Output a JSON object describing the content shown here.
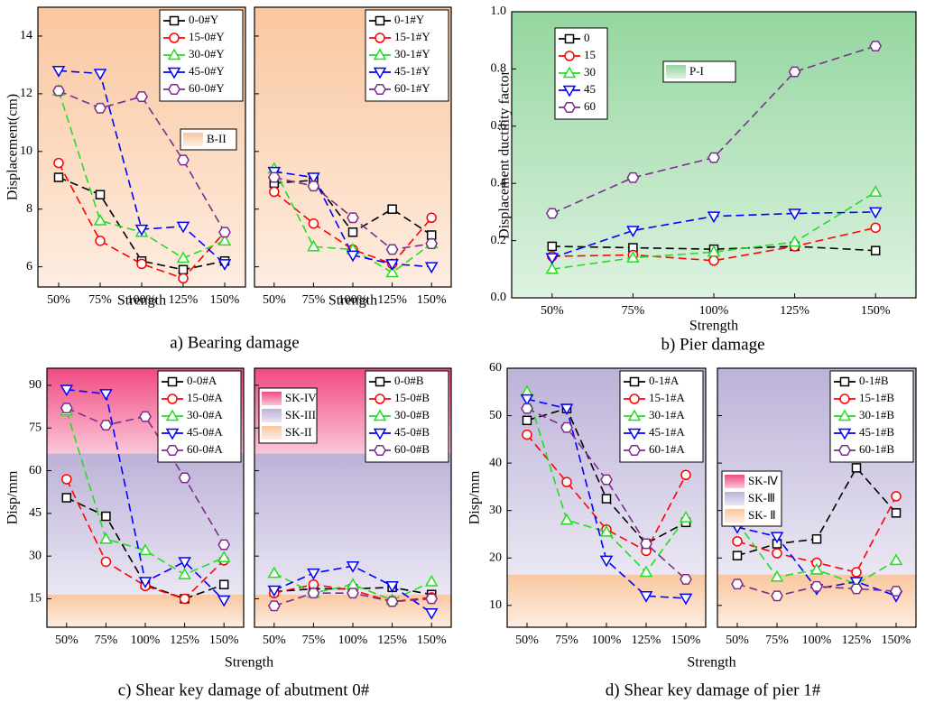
{
  "chart_data": [
    {
      "type": "line",
      "caption": "a) Bearing damage",
      "ylabel": "Displacement(cm)",
      "legend": "upper right",
      "categories": [
        "50%",
        "75%",
        "100%",
        "125%",
        "150%"
      ],
      "ylim": [
        5.3,
        15
      ],
      "yticks": [
        6,
        8,
        10,
        12,
        14
      ],
      "bands": [
        {
          "label": "B-II",
          "range": [
            5.3,
            15
          ],
          "color": "#f9c49a"
        }
      ],
      "panels": [
        {
          "xlabel": "Strength",
          "series": [
            {
              "name": "0-0#Y",
              "color": "#000000",
              "marker": "square",
              "values": [
                9.1,
                8.5,
                6.2,
                5.9,
                6.2
              ]
            },
            {
              "name": "15-0#Y",
              "color": "#ff0000",
              "marker": "circle",
              "values": [
                9.6,
                6.9,
                6.1,
                5.6,
                7.2
              ]
            },
            {
              "name": "30-0#Y",
              "color": "#22dd22",
              "marker": "triangle-up",
              "values": [
                12.1,
                7.6,
                7.2,
                6.3,
                6.9
              ]
            },
            {
              "name": "45-0#Y",
              "color": "#0000ff",
              "marker": "triangle-down",
              "values": [
                12.8,
                12.7,
                7.3,
                7.4,
                6.1
              ]
            },
            {
              "name": "60-0#Y",
              "color": "#7b2d8b",
              "marker": "hexagon",
              "values": [
                12.1,
                11.5,
                11.9,
                9.7,
                7.2
              ]
            }
          ]
        },
        {
          "xlabel": "Strength",
          "series": [
            {
              "name": "0-1#Y",
              "color": "#000000",
              "marker": "square",
              "values": [
                8.9,
                9.0,
                7.2,
                8.0,
                7.1
              ]
            },
            {
              "name": "15-1#Y",
              "color": "#ff0000",
              "marker": "circle",
              "values": [
                8.6,
                7.5,
                6.6,
                6.1,
                7.7
              ]
            },
            {
              "name": "30-1#Y",
              "color": "#22dd22",
              "marker": "triangle-up",
              "values": [
                9.4,
                6.7,
                6.6,
                5.8,
                6.8
              ]
            },
            {
              "name": "45-1#Y",
              "color": "#0000ff",
              "marker": "triangle-down",
              "values": [
                9.3,
                9.1,
                6.4,
                6.1,
                6.0
              ]
            },
            {
              "name": "60-1#Y",
              "color": "#7b2d8b",
              "marker": "hexagon",
              "values": [
                9.1,
                8.8,
                7.7,
                6.6,
                6.8
              ]
            }
          ]
        }
      ]
    },
    {
      "type": "line",
      "caption": "b) Pier damage",
      "ylabel": "Displacement ductility factor",
      "xlabel": "Strength",
      "legend": "upper left",
      "categories": [
        "50%",
        "75%",
        "100%",
        "125%",
        "150%"
      ],
      "ylim": [
        0,
        1
      ],
      "yticks": [
        {
          "value": 0,
          "label": "0.0"
        },
        0.2,
        0.4,
        0.6,
        0.8,
        {
          "value": 1,
          "label": "1.0"
        }
      ],
      "bands": [
        {
          "label": "P-I",
          "range": [
            0,
            1
          ],
          "color": "#8fd49a"
        }
      ],
      "panels": [
        {
          "series": [
            {
              "name": "0",
              "color": "#000000",
              "marker": "square",
              "values": [
                0.18,
                0.175,
                0.17,
                0.18,
                0.165
              ]
            },
            {
              "name": "15",
              "color": "#ff0000",
              "marker": "circle",
              "values": [
                0.145,
                0.15,
                0.13,
                0.18,
                0.245
              ]
            },
            {
              "name": "30",
              "color": "#22dd22",
              "marker": "triangle-up",
              "values": [
                0.1,
                0.14,
                0.16,
                0.195,
                0.37
              ]
            },
            {
              "name": "45",
              "color": "#0000ff",
              "marker": "triangle-down",
              "values": [
                0.14,
                0.235,
                0.285,
                0.295,
                0.3
              ]
            },
            {
              "name": "60",
              "color": "#7b2d8b",
              "marker": "hexagon",
              "values": [
                0.295,
                0.42,
                0.49,
                0.79,
                0.88
              ]
            }
          ]
        }
      ]
    },
    {
      "type": "line",
      "caption": "c) Shear key damage of abutment 0#",
      "ylabel": "Disp/mm",
      "xlabel": "Strength",
      "legend": "upper right",
      "categories": [
        "50%",
        "75%",
        "100%",
        "125%",
        "150%"
      ],
      "ylim": [
        5,
        96
      ],
      "yticks": [
        15,
        30,
        45,
        60,
        75,
        90
      ],
      "bands": [
        {
          "label": "SK-IV",
          "range": [
            66,
            96
          ],
          "color": "#f0407a"
        },
        {
          "label": "SK-III",
          "range": [
            16.5,
            66
          ],
          "color": "#b9aed6"
        },
        {
          "label": "SK-II",
          "range": [
            5,
            16.5
          ],
          "color": "#f9c49a"
        }
      ],
      "panels": [
        {
          "series": [
            {
              "name": "0-0#A",
              "color": "#000000",
              "marker": "square",
              "values": [
                50.5,
                44,
                20,
                15,
                20
              ]
            },
            {
              "name": "15-0#A",
              "color": "#ff0000",
              "marker": "circle",
              "values": [
                57,
                28,
                19.5,
                15,
                28.5
              ]
            },
            {
              "name": "30-0#A",
              "color": "#22dd22",
              "marker": "triangle-up",
              "values": [
                81,
                36,
                32,
                23.5,
                29.5
              ]
            },
            {
              "name": "45-0#A",
              "color": "#0000ff",
              "marker": "triangle-down",
              "values": [
                88.5,
                87,
                21,
                28,
                14.5
              ]
            },
            {
              "name": "60-0#A",
              "color": "#7b2d8b",
              "marker": "hexagon",
              "values": [
                82,
                76,
                79,
                57.5,
                34
              ]
            }
          ]
        },
        {
          "series": [
            {
              "name": "0-0#B",
              "color": "#000000",
              "marker": "square",
              "values": [
                17.5,
                18.5,
                18.5,
                19,
                16.5
              ]
            },
            {
              "name": "15-0#B",
              "color": "#ff0000",
              "marker": "circle",
              "values": [
                17,
                20,
                18,
                14,
                15.5
              ]
            },
            {
              "name": "30-0#B",
              "color": "#22dd22",
              "marker": "triangle-up",
              "values": [
                24,
                17,
                20,
                14.5,
                21
              ]
            },
            {
              "name": "45-0#B",
              "color": "#0000ff",
              "marker": "triangle-down",
              "values": [
                18,
                24,
                26.5,
                19.5,
                10
              ]
            },
            {
              "name": "60-0#B",
              "color": "#7b2d8b",
              "marker": "hexagon",
              "values": [
                12.5,
                17,
                17,
                14,
                15
              ]
            }
          ]
        }
      ]
    },
    {
      "type": "line",
      "caption": "d) Shear key damage of pier 1#",
      "ylabel": "Disp/mm",
      "xlabel": "Strength",
      "legend": "upper right",
      "categories": [
        "50%",
        "75%",
        "100%",
        "125%",
        "150%"
      ],
      "ylim": [
        5.4,
        60
      ],
      "yticks": [
        10,
        20,
        30,
        40,
        50,
        60
      ],
      "bands": [
        {
          "label": "SK-Ⅳ",
          "color": "#f0407a"
        },
        {
          "label": "SK-Ⅲ",
          "range": [
            16.5,
            60
          ],
          "color": "#b9aed6"
        },
        {
          "label": "SK- Ⅱ",
          "range": [
            5.4,
            16.5
          ],
          "color": "#f9c49a"
        }
      ],
      "panels": [
        {
          "series": [
            {
              "name": "0-1#A",
              "color": "#000000",
              "marker": "square",
              "values": [
                49,
                51.5,
                32.5,
                23,
                27.5
              ]
            },
            {
              "name": "15-1#A",
              "color": "#ff0000",
              "marker": "circle",
              "values": [
                46,
                36,
                26,
                21.5,
                37.5
              ]
            },
            {
              "name": "30-1#A",
              "color": "#22dd22",
              "marker": "triangle-up",
              "values": [
                55,
                28,
                25.5,
                17,
                28.5
              ]
            },
            {
              "name": "45-1#A",
              "color": "#0000ff",
              "marker": "triangle-down",
              "values": [
                53.5,
                51.5,
                19.5,
                12,
                11.5
              ]
            },
            {
              "name": "60-1#A",
              "color": "#7b2d8b",
              "marker": "hexagon",
              "values": [
                51.5,
                47.5,
                36.5,
                23,
                15.5
              ]
            }
          ]
        },
        {
          "series": [
            {
              "name": "0-1#B",
              "color": "#000000",
              "marker": "square",
              "values": [
                20.5,
                23,
                24,
                39,
                29.5
              ]
            },
            {
              "name": "15-1#B",
              "color": "#ff0000",
              "marker": "circle",
              "values": [
                23.5,
                21,
                19,
                17,
                33
              ]
            },
            {
              "name": "30-1#B",
              "color": "#22dd22",
              "marker": "triangle-up",
              "values": [
                27.5,
                16,
                17.5,
                14.5,
                19.5
              ]
            },
            {
              "name": "45-1#B",
              "color": "#0000ff",
              "marker": "triangle-down",
              "values": [
                26.5,
                24.5,
                13.5,
                15,
                12
              ]
            },
            {
              "name": "60-1#B",
              "color": "#7b2d8b",
              "marker": "hexagon",
              "values": [
                14.5,
                12,
                14,
                13.5,
                13
              ]
            }
          ]
        }
      ]
    }
  ]
}
